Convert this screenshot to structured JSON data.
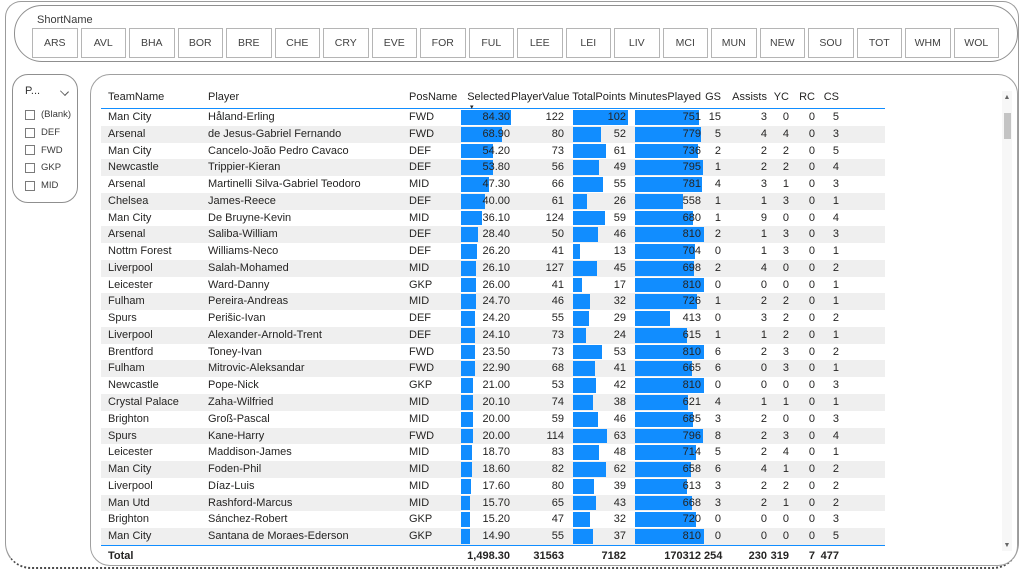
{
  "team_filter": {
    "label": "ShortName",
    "teams": [
      "ARS",
      "AVL",
      "BHA",
      "BOR",
      "BRE",
      "CHE",
      "CRY",
      "EVE",
      "FOR",
      "FUL",
      "LEE",
      "LEI",
      "LIV",
      "MCI",
      "MUN",
      "NEW",
      "SOU",
      "TOT",
      "WHM",
      "WOL"
    ]
  },
  "position_slicer": {
    "title": "P...",
    "options": [
      "(Blank)",
      "DEF",
      "FWD",
      "GKP",
      "MID"
    ]
  },
  "table": {
    "columns": [
      {
        "label": "TeamName"
      },
      {
        "label": "Player"
      },
      {
        "label": "PosName"
      },
      {
        "label": "Selected",
        "sorted": "desc"
      },
      {
        "label": "PlayerValue"
      },
      {
        "label": "TotalPoints"
      },
      {
        "label": "MinutesPlayed"
      },
      {
        "label": "GS"
      },
      {
        "label": "Assists"
      },
      {
        "label": "YC"
      },
      {
        "label": "RC"
      },
      {
        "label": "CS"
      }
    ],
    "bar_max": {
      "selected": 84.3,
      "points": 102,
      "minutes": 810
    },
    "colors": {
      "bar": "#118DFF",
      "header_line": "#118DFF"
    },
    "rows": [
      {
        "team": "Man City",
        "player": "Håland-Erling",
        "pos": "FWD",
        "selected": "84.30",
        "value": "122",
        "points": "102",
        "minutes": "751",
        "gs": "15",
        "ast": "3",
        "yc": "0",
        "rc": "0",
        "cs": "5"
      },
      {
        "team": "Arsenal",
        "player": "de Jesus-Gabriel Fernando",
        "pos": "FWD",
        "selected": "68.90",
        "value": "80",
        "points": "52",
        "minutes": "779",
        "gs": "5",
        "ast": "4",
        "yc": "4",
        "rc": "0",
        "cs": "3"
      },
      {
        "team": "Man City",
        "player": "Cancelo-João Pedro Cavaco",
        "pos": "DEF",
        "selected": "54.20",
        "value": "73",
        "points": "61",
        "minutes": "736",
        "gs": "2",
        "ast": "2",
        "yc": "2",
        "rc": "0",
        "cs": "5"
      },
      {
        "team": "Newcastle",
        "player": "Trippier-Kieran",
        "pos": "DEF",
        "selected": "53.80",
        "value": "56",
        "points": "49",
        "minutes": "795",
        "gs": "1",
        "ast": "2",
        "yc": "2",
        "rc": "0",
        "cs": "4"
      },
      {
        "team": "Arsenal",
        "player": "Martinelli Silva-Gabriel Teodoro",
        "pos": "MID",
        "selected": "47.30",
        "value": "66",
        "points": "55",
        "minutes": "781",
        "gs": "4",
        "ast": "3",
        "yc": "1",
        "rc": "0",
        "cs": "3"
      },
      {
        "team": "Chelsea",
        "player": "James-Reece",
        "pos": "DEF",
        "selected": "40.00",
        "value": "61",
        "points": "26",
        "minutes": "558",
        "gs": "1",
        "ast": "1",
        "yc": "3",
        "rc": "0",
        "cs": "1"
      },
      {
        "team": "Man City",
        "player": "De Bruyne-Kevin",
        "pos": "MID",
        "selected": "36.10",
        "value": "124",
        "points": "59",
        "minutes": "680",
        "gs": "1",
        "ast": "9",
        "yc": "0",
        "rc": "0",
        "cs": "4"
      },
      {
        "team": "Arsenal",
        "player": "Saliba-William",
        "pos": "DEF",
        "selected": "28.40",
        "value": "50",
        "points": "46",
        "minutes": "810",
        "gs": "2",
        "ast": "1",
        "yc": "3",
        "rc": "0",
        "cs": "3"
      },
      {
        "team": "Nottm Forest",
        "player": "Williams-Neco",
        "pos": "DEF",
        "selected": "26.20",
        "value": "41",
        "points": "13",
        "minutes": "704",
        "gs": "0",
        "ast": "1",
        "yc": "3",
        "rc": "0",
        "cs": "1"
      },
      {
        "team": "Liverpool",
        "player": "Salah-Mohamed",
        "pos": "MID",
        "selected": "26.10",
        "value": "127",
        "points": "45",
        "minutes": "698",
        "gs": "2",
        "ast": "4",
        "yc": "0",
        "rc": "0",
        "cs": "2"
      },
      {
        "team": "Leicester",
        "player": "Ward-Danny",
        "pos": "GKP",
        "selected": "26.00",
        "value": "41",
        "points": "17",
        "minutes": "810",
        "gs": "0",
        "ast": "0",
        "yc": "0",
        "rc": "0",
        "cs": "1"
      },
      {
        "team": "Fulham",
        "player": "Pereira-Andreas",
        "pos": "MID",
        "selected": "24.70",
        "value": "46",
        "points": "32",
        "minutes": "726",
        "gs": "1",
        "ast": "2",
        "yc": "2",
        "rc": "0",
        "cs": "1"
      },
      {
        "team": "Spurs",
        "player": "Perišic-Ivan",
        "pos": "DEF",
        "selected": "24.20",
        "value": "55",
        "points": "29",
        "minutes": "413",
        "gs": "0",
        "ast": "3",
        "yc": "2",
        "rc": "0",
        "cs": "2"
      },
      {
        "team": "Liverpool",
        "player": "Alexander-Arnold-Trent",
        "pos": "DEF",
        "selected": "24.10",
        "value": "73",
        "points": "24",
        "minutes": "615",
        "gs": "1",
        "ast": "1",
        "yc": "2",
        "rc": "0",
        "cs": "1"
      },
      {
        "team": "Brentford",
        "player": "Toney-Ivan",
        "pos": "FWD",
        "selected": "23.50",
        "value": "73",
        "points": "53",
        "minutes": "810",
        "gs": "6",
        "ast": "2",
        "yc": "3",
        "rc": "0",
        "cs": "2"
      },
      {
        "team": "Fulham",
        "player": "Mitrovic-Aleksandar",
        "pos": "FWD",
        "selected": "22.90",
        "value": "68",
        "points": "41",
        "minutes": "665",
        "gs": "6",
        "ast": "0",
        "yc": "3",
        "rc": "0",
        "cs": "1"
      },
      {
        "team": "Newcastle",
        "player": "Pope-Nick",
        "pos": "GKP",
        "selected": "21.00",
        "value": "53",
        "points": "42",
        "minutes": "810",
        "gs": "0",
        "ast": "0",
        "yc": "0",
        "rc": "0",
        "cs": "3"
      },
      {
        "team": "Crystal Palace",
        "player": "Zaha-Wilfried",
        "pos": "MID",
        "selected": "20.10",
        "value": "74",
        "points": "38",
        "minutes": "621",
        "gs": "4",
        "ast": "1",
        "yc": "1",
        "rc": "0",
        "cs": "1"
      },
      {
        "team": "Brighton",
        "player": "Groß-Pascal",
        "pos": "MID",
        "selected": "20.00",
        "value": "59",
        "points": "46",
        "minutes": "685",
        "gs": "3",
        "ast": "2",
        "yc": "0",
        "rc": "0",
        "cs": "3"
      },
      {
        "team": "Spurs",
        "player": "Kane-Harry",
        "pos": "FWD",
        "selected": "20.00",
        "value": "114",
        "points": "63",
        "minutes": "796",
        "gs": "8",
        "ast": "2",
        "yc": "3",
        "rc": "0",
        "cs": "4"
      },
      {
        "team": "Leicester",
        "player": "Maddison-James",
        "pos": "MID",
        "selected": "18.70",
        "value": "83",
        "points": "48",
        "minutes": "714",
        "gs": "5",
        "ast": "2",
        "yc": "4",
        "rc": "0",
        "cs": "1"
      },
      {
        "team": "Man City",
        "player": "Foden-Phil",
        "pos": "MID",
        "selected": "18.60",
        "value": "82",
        "points": "62",
        "minutes": "658",
        "gs": "6",
        "ast": "4",
        "yc": "1",
        "rc": "0",
        "cs": "2"
      },
      {
        "team": "Liverpool",
        "player": "Díaz-Luis",
        "pos": "MID",
        "selected": "17.60",
        "value": "80",
        "points": "39",
        "minutes": "613",
        "gs": "3",
        "ast": "2",
        "yc": "2",
        "rc": "0",
        "cs": "2"
      },
      {
        "team": "Man Utd",
        "player": "Rashford-Marcus",
        "pos": "MID",
        "selected": "15.70",
        "value": "65",
        "points": "43",
        "minutes": "668",
        "gs": "3",
        "ast": "2",
        "yc": "1",
        "rc": "0",
        "cs": "2"
      },
      {
        "team": "Brighton",
        "player": "Sánchez-Robert",
        "pos": "GKP",
        "selected": "15.20",
        "value": "47",
        "points": "32",
        "minutes": "720",
        "gs": "0",
        "ast": "0",
        "yc": "0",
        "rc": "0",
        "cs": "3"
      },
      {
        "team": "Man City",
        "player": "Santana de Moraes-Ederson",
        "pos": "GKP",
        "selected": "14.90",
        "value": "55",
        "points": "37",
        "minutes": "810",
        "gs": "0",
        "ast": "0",
        "yc": "0",
        "rc": "0",
        "cs": "5"
      }
    ],
    "total": {
      "team": "Total",
      "player": "",
      "pos": "",
      "selected": "1,498.30",
      "value": "31563",
      "points": "7182",
      "minutes": "170312",
      "gs": "254",
      "ast": "230",
      "yc": "319",
      "rc": "7",
      "cs": "477"
    }
  }
}
